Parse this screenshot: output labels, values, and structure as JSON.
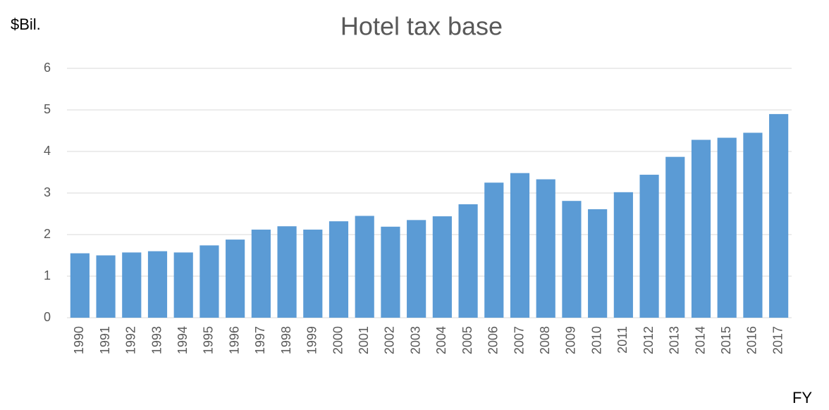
{
  "chart_data": {
    "type": "bar",
    "title": "Hotel tax base",
    "y_label": "$Bil.",
    "x_label": "FY",
    "categories": [
      "1990",
      "1991",
      "1992",
      "1993",
      "1994",
      "1995",
      "1996",
      "1997",
      "1998",
      "1999",
      "2000",
      "2001",
      "2002",
      "2003",
      "2004",
      "2005",
      "2006",
      "2007",
      "2008",
      "2009",
      "2010",
      "2011",
      "2012",
      "2013",
      "2014",
      "2015",
      "2016",
      "2017"
    ],
    "values": [
      1.55,
      1.5,
      1.57,
      1.6,
      1.57,
      1.74,
      1.88,
      2.12,
      2.2,
      2.12,
      2.32,
      2.45,
      2.19,
      2.35,
      2.44,
      2.73,
      3.25,
      3.48,
      3.33,
      2.81,
      2.61,
      3.02,
      3.44,
      3.87,
      4.28,
      4.33,
      4.45,
      4.9
    ],
    "color": "#5b9bd5",
    "ylim": [
      0,
      6
    ],
    "yticks": [
      0,
      1,
      2,
      3,
      4,
      5,
      6
    ],
    "grid": true
  }
}
